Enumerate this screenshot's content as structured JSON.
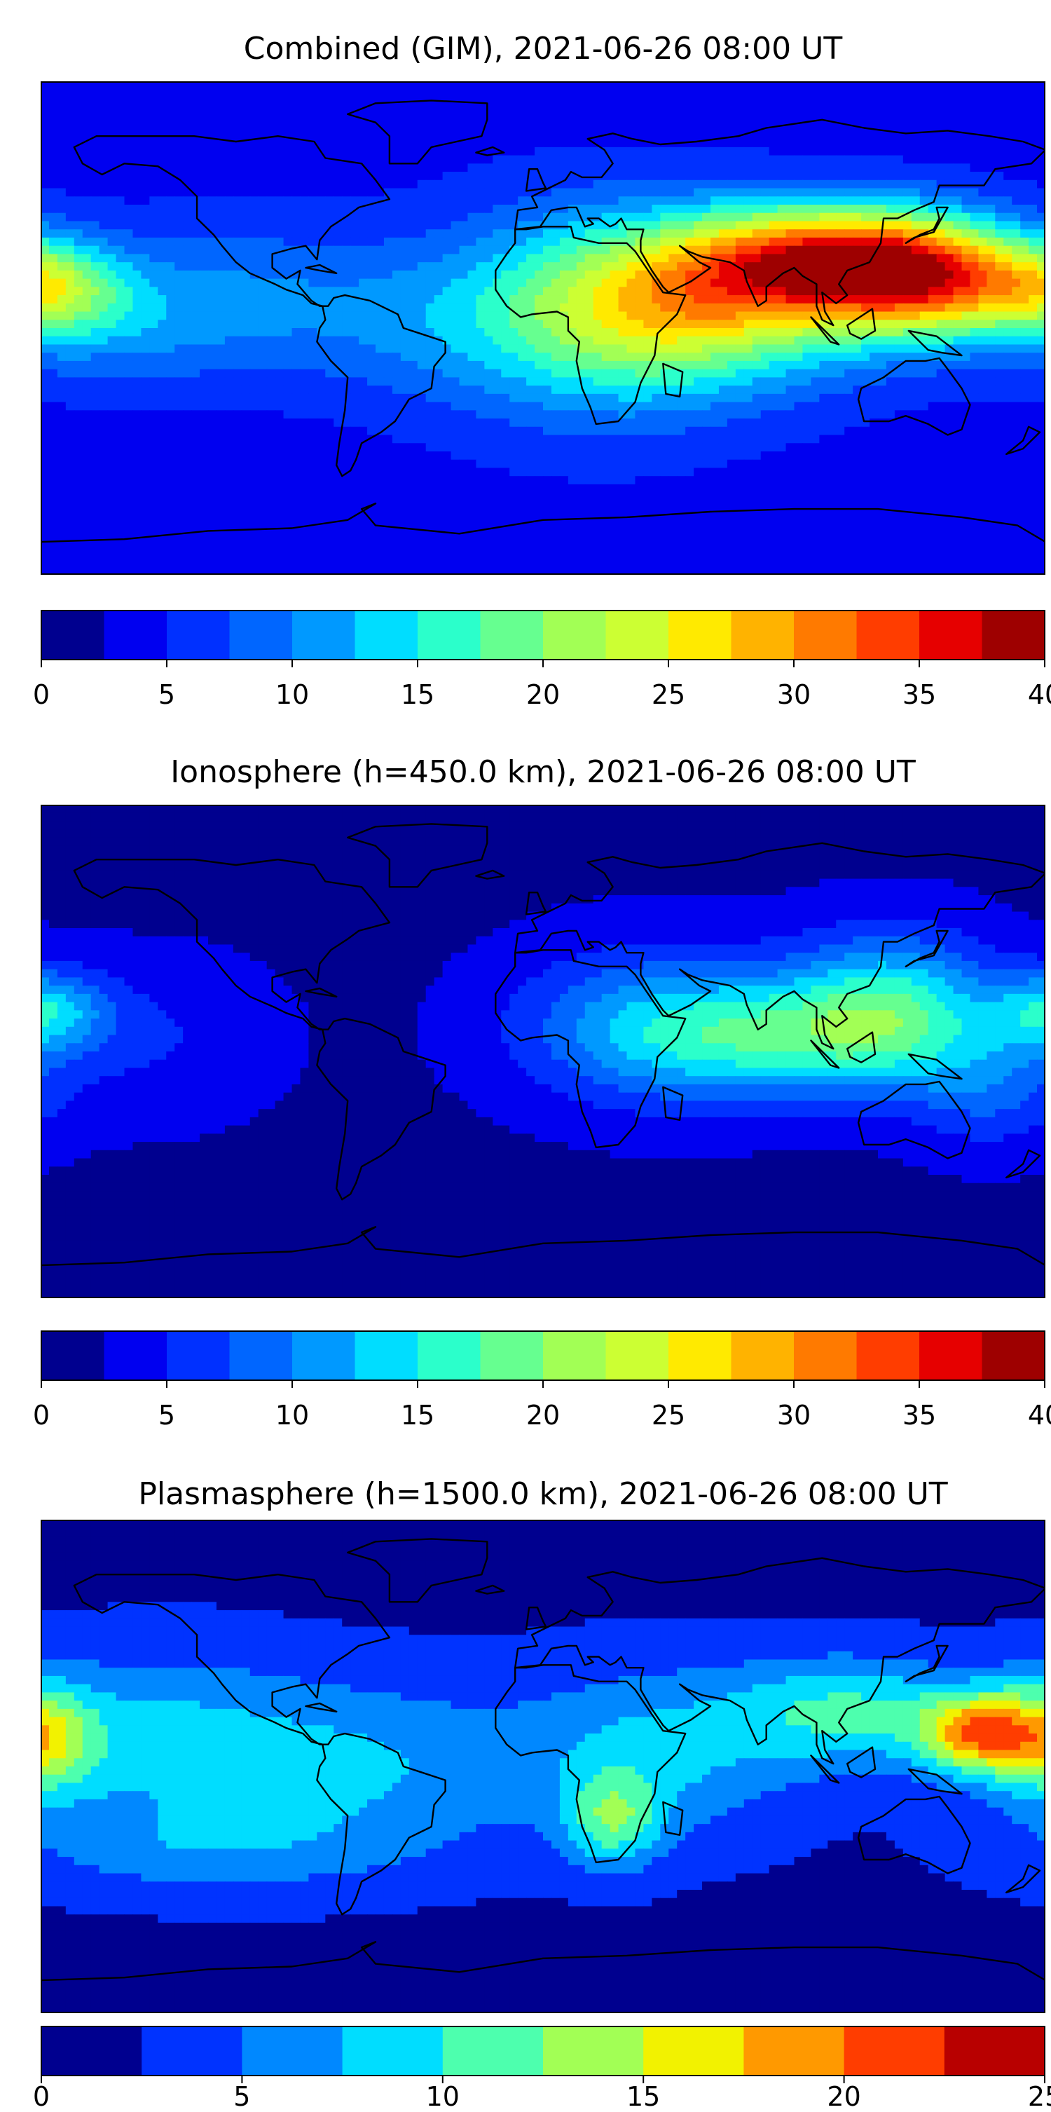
{
  "chart_data": [
    {
      "type": "heatmap",
      "title": "Combined (GIM), 2021-06-26 08:00 UT",
      "colorbar": {
        "range": [
          0,
          40
        ],
        "levels": [
          0,
          2.5,
          5,
          7.5,
          10,
          12.5,
          15,
          17.5,
          20,
          22.5,
          25,
          27.5,
          30,
          32.5,
          35,
          37.5,
          40
        ],
        "ticks": [
          "0",
          "5",
          "10",
          "15",
          "20",
          "25",
          "30",
          "35",
          "40"
        ],
        "colors": [
          "#00008f",
          "#0000f0",
          "#0030ff",
          "#0066ff",
          "#0099ff",
          "#00ddff",
          "#2bffcb",
          "#66ff90",
          "#a2ff55",
          "#ccff33",
          "#ffea00",
          "#ffb300",
          "#ff7a00",
          "#ff3d00",
          "#e60000",
          "#9e0000"
        ]
      },
      "field": {
        "base": 4,
        "blobs": [
          {
            "lon": 100,
            "lat": 25,
            "value": 24,
            "sx": 35,
            "sy": 14
          },
          {
            "lon": 138,
            "lat": 18,
            "value": 20,
            "sx": 25,
            "sy": 15
          },
          {
            "lon": 60,
            "lat": 8,
            "value": 16,
            "sx": 45,
            "sy": 20
          },
          {
            "lon": 20,
            "lat": 5,
            "value": 10,
            "sx": 40,
            "sy": 28
          },
          {
            "lon": -178,
            "lat": 15,
            "value": 14,
            "sx": 20,
            "sy": 12
          },
          {
            "lon": -110,
            "lat": 10,
            "value": 6,
            "sx": 40,
            "sy": 20
          },
          {
            "lon": -160,
            "lat": 0,
            "value": 4,
            "sx": 30,
            "sy": 15
          },
          {
            "lon": -45,
            "lat": 0,
            "value": 3,
            "sx": 30,
            "sy": 20
          }
        ]
      }
    },
    {
      "type": "heatmap",
      "title": "Ionosphere  (h=450.0 km), 2021-06-26 08:00 UT",
      "colorbar": {
        "range": [
          0,
          40
        ],
        "levels": [
          0,
          2.5,
          5,
          7.5,
          10,
          12.5,
          15,
          17.5,
          20,
          22.5,
          25,
          27.5,
          30,
          32.5,
          35,
          37.5,
          40
        ],
        "ticks": [
          "0",
          "5",
          "10",
          "15",
          "20",
          "25",
          "30",
          "35",
          "40"
        ],
        "colors": [
          "#00008f",
          "#0000f0",
          "#0030ff",
          "#0066ff",
          "#0099ff",
          "#00ddff",
          "#2bffcb",
          "#66ff90",
          "#a2ff55",
          "#ccff33",
          "#ffea00",
          "#ffb300",
          "#ff7a00",
          "#ff3d00",
          "#e60000",
          "#9e0000"
        ]
      },
      "field": {
        "base": 2,
        "blobs": [
          {
            "lon": 95,
            "lat": 5,
            "value": 12,
            "sx": 45,
            "sy": 15
          },
          {
            "lon": 125,
            "lat": 20,
            "value": 10,
            "sx": 25,
            "sy": 18
          },
          {
            "lon": 40,
            "lat": 10,
            "value": 8,
            "sx": 35,
            "sy": 20
          },
          {
            "lon": -178,
            "lat": 15,
            "value": 10,
            "sx": 15,
            "sy": 10
          },
          {
            "lon": 160,
            "lat": -15,
            "value": 5,
            "sx": 20,
            "sy": 15
          },
          {
            "lon": -140,
            "lat": 5,
            "value": 3,
            "sx": 30,
            "sy": 20
          }
        ]
      }
    },
    {
      "type": "heatmap",
      "title": "Plasmasphere (h=1500.0 km), 2021-06-26 08:00 UT",
      "colorbar": {
        "range": [
          0,
          25
        ],
        "levels": [
          0,
          2.5,
          5,
          7.5,
          10,
          12.5,
          15,
          17.5,
          20,
          22.5,
          25
        ],
        "ticks": [
          "0",
          "5",
          "10",
          "15",
          "20",
          "25"
        ],
        "colors": [
          "#00008f",
          "#0033ff",
          "#0088ff",
          "#00ddff",
          "#4dffae",
          "#a2ff55",
          "#f2f200",
          "#ff9900",
          "#ff3d00",
          "#b80000"
        ]
      },
      "field": {
        "base": 2,
        "blobs": [
          {
            "lon": 155,
            "lat": 12,
            "value": 14,
            "sx": 14,
            "sy": 10
          },
          {
            "lon": 110,
            "lat": 20,
            "value": 8,
            "sx": 30,
            "sy": 14
          },
          {
            "lon": 25,
            "lat": -20,
            "value": 8,
            "sx": 12,
            "sy": 12
          },
          {
            "lon": 40,
            "lat": 5,
            "value": 6,
            "sx": 35,
            "sy": 22
          },
          {
            "lon": -180,
            "lat": 10,
            "value": 10,
            "sx": 14,
            "sy": 14
          },
          {
            "lon": -140,
            "lat": 10,
            "value": 6,
            "sx": 40,
            "sy": 22
          },
          {
            "lon": -60,
            "lat": 0,
            "value": 5,
            "sx": 40,
            "sy": 22
          },
          {
            "lon": -120,
            "lat": -30,
            "value": 4,
            "sx": 50,
            "sy": 12
          }
        ]
      }
    }
  ]
}
